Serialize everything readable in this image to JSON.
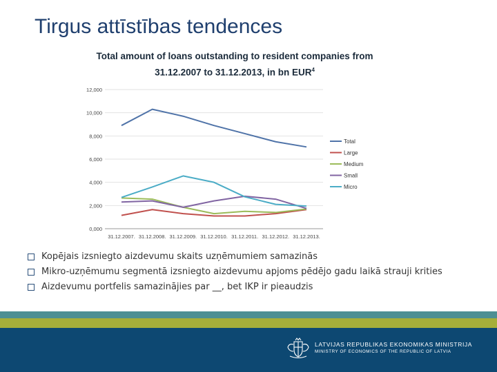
{
  "slide": {
    "title": "Tirgus attīstības tendences"
  },
  "chart_data": {
    "type": "line",
    "title_line1": "Total amount of loans outstanding to resident companies from",
    "title_line2": "31.12.2007 to 31.12.2013, in bn EUR",
    "title_footnote": "4",
    "categories": [
      "31.12.2007.",
      "31.12.2008.",
      "31.12.2009.",
      "31.12.2010.",
      "31.12.2011.",
      "31.12.2012.",
      "31.12.2013."
    ],
    "yticks": [
      "0,000",
      "2,000",
      "4,000",
      "6,000",
      "8,000",
      "10,000",
      "12,000"
    ],
    "ylim": [
      0,
      12000
    ],
    "legend_position": "right",
    "grid": true,
    "series": [
      {
        "name": "Total",
        "color": "#4f73a8",
        "values": [
          8900,
          10300,
          9700,
          8900,
          8200,
          7500,
          7050
        ]
      },
      {
        "name": "Large",
        "color": "#c0504d",
        "values": [
          1150,
          1650,
          1300,
          1100,
          1100,
          1300,
          1650
        ]
      },
      {
        "name": "Medium",
        "color": "#9bbb59",
        "values": [
          2650,
          2550,
          1850,
          1300,
          1500,
          1400,
          1700
        ]
      },
      {
        "name": "Small",
        "color": "#8064a2",
        "values": [
          2300,
          2400,
          1850,
          2400,
          2800,
          2550,
          1750
        ]
      },
      {
        "name": "Micro",
        "color": "#4bacc6",
        "values": [
          2700,
          3600,
          4550,
          4000,
          2750,
          2100,
          1950
        ]
      }
    ]
  },
  "bullets": [
    "Kopējais izsniegto aizdevumu skaits uzņēmumiem samazinās",
    "Mikro-uzņēmumu segmentā izsniegto aizdevumu apjoms pēdējo gadu laikā strauji krities",
    "Aizdevumu portfelis samazinājies par __, bet IKP ir pieaudzis"
  ],
  "footer": {
    "ministry_lv": "LATVIJAS REPUBLIKAS EKONOMIKAS MINISTRIJA",
    "ministry_en": "MINISTRY OF ECONOMICS OF THE REPUBLIC OF LATVIA",
    "emblem_icon": "coat-of-arms-icon",
    "band_colors": [
      "#4e8f93",
      "#a6ae3a",
      "#0d4872"
    ]
  }
}
